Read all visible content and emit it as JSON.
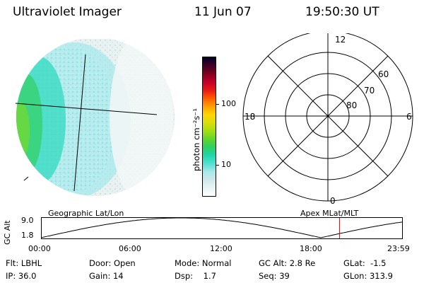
{
  "header": {
    "title": "Ultraviolet Imager",
    "date": "11 Jun 07",
    "time": "19:50:30 UT"
  },
  "colorbar": {
    "unit_label": "photon cm⁻²s⁻¹",
    "ticks": [
      {
        "value": 100,
        "label": "100"
      },
      {
        "value": 10,
        "label": "10"
      }
    ],
    "range": [
      3,
      600
    ],
    "scale": "log",
    "colors": [
      "#ffffff",
      "#e8f4f4",
      "#cfe7ea",
      "#a7e8ec",
      "#4fe0d0",
      "#1fd6a8",
      "#30cf60",
      "#62d62a",
      "#a6de12",
      "#dcde0a",
      "#ffd400",
      "#ff9c00",
      "#ff5a00",
      "#e81616",
      "#c0002a",
      "#80001f",
      "#40002a",
      "#000022"
    ]
  },
  "polar_grid": {
    "mlt_labels": {
      "top": "12",
      "bottom": "0",
      "left": "18",
      "right": "6"
    },
    "lat_labels": [
      "60",
      "70",
      "80"
    ]
  },
  "altitude_plot": {
    "ylabel": "GC Alt",
    "yticks": [
      "9.0",
      "1.8"
    ],
    "left_caption": "Geographic Lat/Lon",
    "right_caption": "Apex MLat/MLT",
    "xticks": [
      "00:00",
      "06:00",
      "12:00",
      "18:00",
      "23:59"
    ],
    "current_time_hours": 19.84,
    "marker_color": "#cc0000"
  },
  "status": {
    "row1": [
      {
        "key": "Flt:",
        "value": "LBHL"
      },
      {
        "key": "Door:",
        "value": "Open"
      },
      {
        "key": "Mode:",
        "value": "Normal"
      },
      {
        "key": "GC Alt:",
        "value": "2.8 Re"
      },
      {
        "key": "GLat:",
        "value": "-1.5"
      }
    ],
    "row2": [
      {
        "key": "IP:",
        "value": "36.0"
      },
      {
        "key": "Gain:",
        "value": "14"
      },
      {
        "key": "Dsp:",
        "value": "1.7"
      },
      {
        "key": "Seq:",
        "value": "39"
      },
      {
        "key": "GLon:",
        "value": "313.9"
      }
    ]
  }
}
